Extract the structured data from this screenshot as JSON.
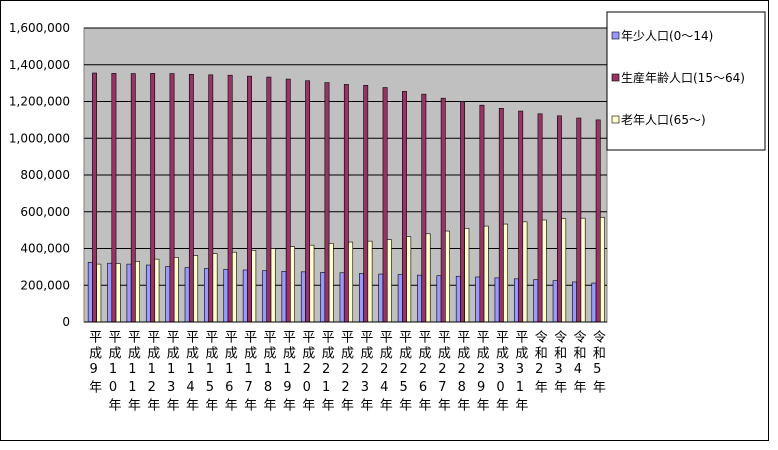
{
  "chart_data": {
    "type": "bar",
    "categories": [
      "平成9年",
      "平成10年",
      "平成11年",
      "平成12年",
      "平成13年",
      "平成14年",
      "平成15年",
      "平成16年",
      "平成17年",
      "平成18年",
      "平成19年",
      "平成20年",
      "平成21年",
      "平成22年",
      "平成23年",
      "平成24年",
      "平成25年",
      "平成26年",
      "平成27年",
      "平成28年",
      "平成29年",
      "平成30年",
      "平成31年",
      "令和2年",
      "令和3年",
      "令和4年",
      "令和5年"
    ],
    "series": [
      {
        "name": "年少人口(0～14)",
        "color": "#9999ff",
        "values": [
          325000,
          320000,
          315000,
          310000,
          302000,
          296000,
          291000,
          287000,
          283000,
          279000,
          276000,
          273000,
          270000,
          268000,
          264000,
          261000,
          258000,
          255000,
          252000,
          249000,
          245000,
          240000,
          235000,
          231000,
          225000,
          218000,
          212000
        ]
      },
      {
        "name": "生産年齢人口(15～64)",
        "color": "#993366",
        "values": [
          1355000,
          1353000,
          1352000,
          1353000,
          1352000,
          1348000,
          1345000,
          1343000,
          1338000,
          1333000,
          1322000,
          1313000,
          1303000,
          1293000,
          1288000,
          1276000,
          1255000,
          1240000,
          1218000,
          1200000,
          1180000,
          1163000,
          1148000,
          1133000,
          1122000,
          1110000,
          1100000
        ]
      },
      {
        "name": "老年人口(65～)",
        "color": "#ffffcc",
        "values": [
          315000,
          318000,
          330000,
          342000,
          352000,
          362000,
          372000,
          380000,
          390000,
          400000,
          410000,
          418000,
          428000,
          435000,
          440000,
          448000,
          465000,
          480000,
          495000,
          510000,
          522000,
          533000,
          545000,
          555000,
          562000,
          565000,
          570000
        ]
      }
    ],
    "ylim": [
      0,
      1600000
    ],
    "yticks": [
      0,
      {
        "value": 200000,
        "label": "200,000"
      },
      {
        "value": 400000,
        "label": "400,000"
      },
      {
        "value": 600000,
        "label": "600,000"
      },
      {
        "value": 800000,
        "label": "800,000"
      },
      {
        "value": 1000000,
        "label": "1,000,000"
      },
      {
        "value": 1200000,
        "label": "1,200,000"
      },
      {
        "value": 1400000,
        "label": "1,400,000"
      },
      {
        "value": 1600000,
        "label": "1,600,000"
      }
    ],
    "grid": true,
    "legend": "right"
  }
}
